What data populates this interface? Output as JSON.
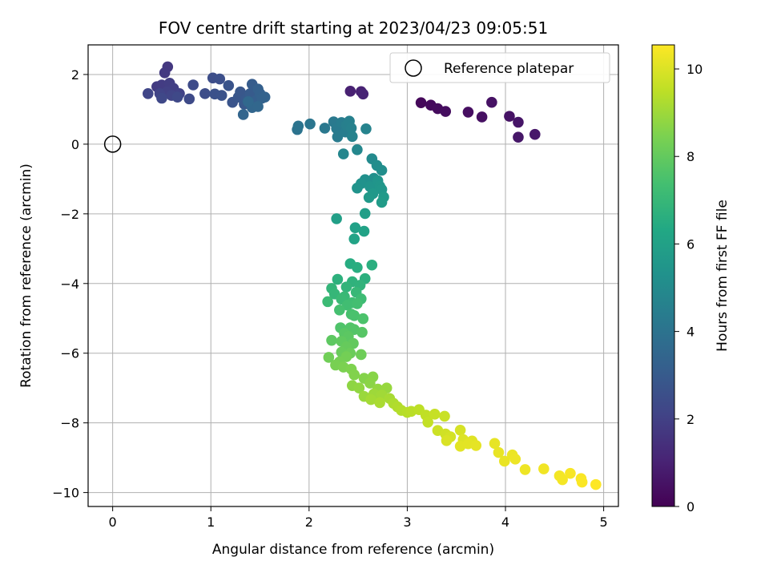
{
  "chart_data": {
    "type": "scatter",
    "title": "FOV centre drift starting at 2023/04/23 09:05:51",
    "xlabel": "Angular distance from reference (arcmin)",
    "ylabel": "Rotation from reference (arcmin)",
    "xlim": [
      -0.25,
      5.15
    ],
    "ylim": [
      -10.4,
      2.85
    ],
    "xticks": [
      0,
      1,
      2,
      3,
      4,
      5
    ],
    "xtick_labels": [
      "0",
      "1",
      "2",
      "3",
      "4",
      "5"
    ],
    "yticks": [
      2,
      0,
      -2,
      -4,
      -6,
      -8,
      -10
    ],
    "ytick_labels": [
      "2",
      "0",
      "−2",
      "−4",
      "−6",
      "−8",
      "−10"
    ],
    "grid": true,
    "legend": {
      "label": "Reference platepar",
      "placement": "top-right"
    },
    "reference_point": {
      "x": 0,
      "y": 0
    },
    "colorbar": {
      "label": "Hours from first FF file",
      "colormap": "viridis",
      "range": [
        0,
        10.55
      ],
      "ticks": [
        0,
        2,
        4,
        6,
        8,
        10
      ],
      "tick_labels": [
        "0",
        "2",
        "4",
        "6",
        "8",
        "10"
      ]
    },
    "points": [
      {
        "x": 3.14,
        "y": 1.19,
        "t": 0.2
      },
      {
        "x": 3.24,
        "y": 1.12,
        "t": 0.25
      },
      {
        "x": 3.31,
        "y": 1.02,
        "t": 0.3
      },
      {
        "x": 3.39,
        "y": 0.94,
        "t": 0.35
      },
      {
        "x": 3.62,
        "y": 0.92,
        "t": 0.4
      },
      {
        "x": 3.76,
        "y": 0.78,
        "t": 0.45
      },
      {
        "x": 3.86,
        "y": 1.2,
        "t": 0.5
      },
      {
        "x": 4.04,
        "y": 0.8,
        "t": 0.55
      },
      {
        "x": 4.13,
        "y": 0.63,
        "t": 0.6
      },
      {
        "x": 4.13,
        "y": 0.2,
        "t": 0.65
      },
      {
        "x": 4.3,
        "y": 0.28,
        "t": 0.7
      },
      {
        "x": 2.42,
        "y": 1.52,
        "t": 0.95
      },
      {
        "x": 2.53,
        "y": 1.51,
        "t": 1.0
      },
      {
        "x": 2.55,
        "y": 1.44,
        "t": 1.05
      },
      {
        "x": 0.56,
        "y": 2.22,
        "t": 1.7
      },
      {
        "x": 0.53,
        "y": 2.05,
        "t": 1.75
      },
      {
        "x": 0.45,
        "y": 1.65,
        "t": 1.8
      },
      {
        "x": 0.5,
        "y": 1.7,
        "t": 1.85
      },
      {
        "x": 0.58,
        "y": 1.75,
        "t": 1.9
      },
      {
        "x": 0.62,
        "y": 1.6,
        "t": 1.95
      },
      {
        "x": 0.55,
        "y": 1.5,
        "t": 2.0
      },
      {
        "x": 0.68,
        "y": 1.45,
        "t": 2.05
      },
      {
        "x": 0.48,
        "y": 1.45,
        "t": 2.1
      },
      {
        "x": 0.6,
        "y": 1.4,
        "t": 2.15
      },
      {
        "x": 0.36,
        "y": 1.45,
        "t": 2.2
      },
      {
        "x": 0.5,
        "y": 1.32,
        "t": 2.25
      },
      {
        "x": 0.66,
        "y": 1.35,
        "t": 2.3
      },
      {
        "x": 0.78,
        "y": 1.3,
        "t": 2.35
      },
      {
        "x": 0.82,
        "y": 1.7,
        "t": 2.4
      },
      {
        "x": 0.94,
        "y": 1.45,
        "t": 2.45
      },
      {
        "x": 1.02,
        "y": 1.9,
        "t": 2.5
      },
      {
        "x": 1.09,
        "y": 1.87,
        "t": 2.55
      },
      {
        "x": 1.04,
        "y": 1.44,
        "t": 2.6
      },
      {
        "x": 1.11,
        "y": 1.4,
        "t": 2.65
      },
      {
        "x": 1.18,
        "y": 1.68,
        "t": 2.7
      },
      {
        "x": 1.22,
        "y": 1.2,
        "t": 2.75
      },
      {
        "x": 1.28,
        "y": 1.35,
        "t": 2.8
      },
      {
        "x": 1.3,
        "y": 1.5,
        "t": 2.85
      },
      {
        "x": 1.34,
        "y": 1.15,
        "t": 2.9
      },
      {
        "x": 1.36,
        "y": 1.3,
        "t": 2.95
      },
      {
        "x": 1.4,
        "y": 1.45,
        "t": 3.0
      },
      {
        "x": 1.42,
        "y": 1.72,
        "t": 3.05
      },
      {
        "x": 1.44,
        "y": 1.1,
        "t": 3.1
      },
      {
        "x": 1.46,
        "y": 1.25,
        "t": 3.15
      },
      {
        "x": 1.48,
        "y": 1.58,
        "t": 3.2
      },
      {
        "x": 1.5,
        "y": 1.45,
        "t": 3.25
      },
      {
        "x": 1.52,
        "y": 1.32,
        "t": 3.3
      },
      {
        "x": 1.55,
        "y": 1.35,
        "t": 3.35
      },
      {
        "x": 1.33,
        "y": 0.85,
        "t": 3.4
      },
      {
        "x": 1.42,
        "y": 1.05,
        "t": 3.45
      },
      {
        "x": 1.48,
        "y": 1.08,
        "t": 3.5
      },
      {
        "x": 1.38,
        "y": 1.22,
        "t": 3.55
      },
      {
        "x": 1.88,
        "y": 0.42,
        "t": 4.0
      },
      {
        "x": 1.89,
        "y": 0.52,
        "t": 4.05
      },
      {
        "x": 2.01,
        "y": 0.58,
        "t": 4.1
      },
      {
        "x": 2.16,
        "y": 0.46,
        "t": 4.2
      },
      {
        "x": 2.25,
        "y": 0.64,
        "t": 4.25
      },
      {
        "x": 2.28,
        "y": 0.45,
        "t": 4.3
      },
      {
        "x": 2.29,
        "y": 0.21,
        "t": 4.35
      },
      {
        "x": 2.33,
        "y": 0.62,
        "t": 4.4
      },
      {
        "x": 2.37,
        "y": 0.35,
        "t": 4.45
      },
      {
        "x": 2.38,
        "y": 0.54,
        "t": 4.5
      },
      {
        "x": 2.41,
        "y": 0.66,
        "t": 4.55
      },
      {
        "x": 2.43,
        "y": 0.46,
        "t": 4.6
      },
      {
        "x": 2.44,
        "y": 0.22,
        "t": 4.65
      },
      {
        "x": 2.58,
        "y": 0.44,
        "t": 4.7
      },
      {
        "x": 2.35,
        "y": -0.28,
        "t": 4.8
      },
      {
        "x": 2.49,
        "y": -0.16,
        "t": 4.85
      },
      {
        "x": 2.64,
        "y": -0.42,
        "t": 5.0
      },
      {
        "x": 2.69,
        "y": -0.61,
        "t": 5.1
      },
      {
        "x": 2.74,
        "y": -0.75,
        "t": 5.15
      },
      {
        "x": 2.66,
        "y": -0.98,
        "t": 5.2
      },
      {
        "x": 2.57,
        "y": -1.02,
        "t": 5.25
      },
      {
        "x": 2.53,
        "y": -1.13,
        "t": 5.3
      },
      {
        "x": 2.49,
        "y": -1.26,
        "t": 5.35
      },
      {
        "x": 2.62,
        "y": -1.22,
        "t": 5.4
      },
      {
        "x": 2.7,
        "y": -1.05,
        "t": 5.45
      },
      {
        "x": 2.72,
        "y": -1.21,
        "t": 5.5
      },
      {
        "x": 2.74,
        "y": -1.3,
        "t": 5.55
      },
      {
        "x": 2.65,
        "y": -1.42,
        "t": 5.6
      },
      {
        "x": 2.61,
        "y": -1.53,
        "t": 5.65
      },
      {
        "x": 2.76,
        "y": -1.52,
        "t": 5.7
      },
      {
        "x": 2.74,
        "y": -1.67,
        "t": 5.75
      },
      {
        "x": 2.57,
        "y": -1.99,
        "t": 5.85
      },
      {
        "x": 2.28,
        "y": -2.14,
        "t": 5.9
      },
      {
        "x": 2.47,
        "y": -2.4,
        "t": 6.0
      },
      {
        "x": 2.56,
        "y": -2.5,
        "t": 6.05
      },
      {
        "x": 2.46,
        "y": -2.72,
        "t": 6.1
      },
      {
        "x": 2.42,
        "y": -3.43,
        "t": 6.5
      },
      {
        "x": 2.49,
        "y": -3.54,
        "t": 6.55
      },
      {
        "x": 2.64,
        "y": -3.47,
        "t": 6.6
      },
      {
        "x": 2.57,
        "y": -3.86,
        "t": 6.65
      },
      {
        "x": 2.29,
        "y": -3.88,
        "t": 6.7
      },
      {
        "x": 2.44,
        "y": -3.95,
        "t": 6.75
      },
      {
        "x": 2.52,
        "y": -4.05,
        "t": 6.8
      },
      {
        "x": 2.38,
        "y": -4.1,
        "t": 6.85
      },
      {
        "x": 2.23,
        "y": -4.14,
        "t": 6.9
      },
      {
        "x": 2.26,
        "y": -4.3,
        "t": 6.95
      },
      {
        "x": 2.48,
        "y": -4.25,
        "t": 7.0
      },
      {
        "x": 2.36,
        "y": -4.38,
        "t": 7.05
      },
      {
        "x": 2.33,
        "y": -4.45,
        "t": 7.1
      },
      {
        "x": 2.19,
        "y": -4.52,
        "t": 7.15
      },
      {
        "x": 2.53,
        "y": -4.44,
        "t": 7.2
      },
      {
        "x": 2.44,
        "y": -4.55,
        "t": 7.25
      },
      {
        "x": 2.39,
        "y": -4.62,
        "t": 7.3
      },
      {
        "x": 2.49,
        "y": -4.58,
        "t": 7.35
      },
      {
        "x": 2.31,
        "y": -4.76,
        "t": 7.4
      },
      {
        "x": 2.43,
        "y": -4.88,
        "t": 7.45
      },
      {
        "x": 2.46,
        "y": -4.92,
        "t": 7.5
      },
      {
        "x": 2.55,
        "y": -5.01,
        "t": 7.55
      },
      {
        "x": 2.32,
        "y": -5.27,
        "t": 7.6
      },
      {
        "x": 2.42,
        "y": -5.27,
        "t": 7.65
      },
      {
        "x": 2.46,
        "y": -5.32,
        "t": 7.7
      },
      {
        "x": 2.54,
        "y": -5.4,
        "t": 7.75
      },
      {
        "x": 2.36,
        "y": -5.43,
        "t": 7.8
      },
      {
        "x": 2.4,
        "y": -5.52,
        "t": 7.85
      },
      {
        "x": 2.23,
        "y": -5.63,
        "t": 7.9
      },
      {
        "x": 2.33,
        "y": -5.66,
        "t": 7.95
      },
      {
        "x": 2.45,
        "y": -5.72,
        "t": 8.0
      },
      {
        "x": 2.38,
        "y": -5.82,
        "t": 8.05
      },
      {
        "x": 2.33,
        "y": -5.97,
        "t": 8.1
      },
      {
        "x": 2.42,
        "y": -6.0,
        "t": 8.15
      },
      {
        "x": 2.53,
        "y": -6.04,
        "t": 8.2
      },
      {
        "x": 2.2,
        "y": -6.12,
        "t": 8.25
      },
      {
        "x": 2.38,
        "y": -6.1,
        "t": 8.3
      },
      {
        "x": 2.31,
        "y": -6.25,
        "t": 8.35
      },
      {
        "x": 2.27,
        "y": -6.34,
        "t": 8.4
      },
      {
        "x": 2.35,
        "y": -6.4,
        "t": 8.45
      },
      {
        "x": 2.43,
        "y": -6.46,
        "t": 8.5
      },
      {
        "x": 2.46,
        "y": -6.62,
        "t": 8.55
      },
      {
        "x": 2.56,
        "y": -6.72,
        "t": 8.6
      },
      {
        "x": 2.65,
        "y": -6.68,
        "t": 8.65
      },
      {
        "x": 2.62,
        "y": -6.86,
        "t": 8.7
      },
      {
        "x": 2.44,
        "y": -6.93,
        "t": 8.75
      },
      {
        "x": 2.51,
        "y": -7.0,
        "t": 8.8
      },
      {
        "x": 2.7,
        "y": -7.03,
        "t": 8.85
      },
      {
        "x": 2.79,
        "y": -7.0,
        "t": 8.9
      },
      {
        "x": 2.56,
        "y": -7.24,
        "t": 8.95
      },
      {
        "x": 2.66,
        "y": -7.17,
        "t": 9.0
      },
      {
        "x": 2.74,
        "y": -7.2,
        "t": 9.05
      },
      {
        "x": 2.63,
        "y": -7.33,
        "t": 9.1
      },
      {
        "x": 2.82,
        "y": -7.3,
        "t": 9.15
      },
      {
        "x": 2.72,
        "y": -7.42,
        "t": 9.2
      },
      {
        "x": 2.86,
        "y": -7.44,
        "t": 9.25
      },
      {
        "x": 2.9,
        "y": -7.54,
        "t": 9.3
      },
      {
        "x": 2.94,
        "y": -7.64,
        "t": 9.35
      },
      {
        "x": 3.0,
        "y": -7.7,
        "t": 9.4
      },
      {
        "x": 3.04,
        "y": -7.67,
        "t": 9.45
      },
      {
        "x": 3.12,
        "y": -7.62,
        "t": 9.5
      },
      {
        "x": 3.19,
        "y": -7.78,
        "t": 9.55
      },
      {
        "x": 3.21,
        "y": -7.98,
        "t": 9.6
      },
      {
        "x": 3.28,
        "y": -7.75,
        "t": 9.65
      },
      {
        "x": 3.38,
        "y": -7.81,
        "t": 9.7
      },
      {
        "x": 3.31,
        "y": -8.22,
        "t": 9.75
      },
      {
        "x": 3.39,
        "y": -8.32,
        "t": 9.8
      },
      {
        "x": 3.44,
        "y": -8.4,
        "t": 9.85
      },
      {
        "x": 3.54,
        "y": -8.21,
        "t": 9.9
      },
      {
        "x": 3.4,
        "y": -8.51,
        "t": 9.95
      },
      {
        "x": 3.57,
        "y": -8.48,
        "t": 10.0
      },
      {
        "x": 3.66,
        "y": -8.52,
        "t": 10.05
      },
      {
        "x": 3.54,
        "y": -8.67,
        "t": 10.1
      },
      {
        "x": 3.62,
        "y": -8.6,
        "t": 10.12
      },
      {
        "x": 3.7,
        "y": -8.65,
        "t": 10.15
      },
      {
        "x": 3.89,
        "y": -8.59,
        "t": 10.18
      },
      {
        "x": 3.93,
        "y": -8.85,
        "t": 10.2
      },
      {
        "x": 3.99,
        "y": -9.1,
        "t": 10.22
      },
      {
        "x": 4.07,
        "y": -8.92,
        "t": 10.25
      },
      {
        "x": 4.1,
        "y": -9.04,
        "t": 10.28
      },
      {
        "x": 4.2,
        "y": -9.34,
        "t": 10.3
      },
      {
        "x": 4.39,
        "y": -9.32,
        "t": 10.35
      },
      {
        "x": 4.55,
        "y": -9.52,
        "t": 10.38
      },
      {
        "x": 4.58,
        "y": -9.63,
        "t": 10.4
      },
      {
        "x": 4.66,
        "y": -9.45,
        "t": 10.45
      },
      {
        "x": 4.77,
        "y": -9.6,
        "t": 10.48
      },
      {
        "x": 4.78,
        "y": -9.7,
        "t": 10.5
      },
      {
        "x": 4.92,
        "y": -9.77,
        "t": 10.55
      }
    ]
  }
}
